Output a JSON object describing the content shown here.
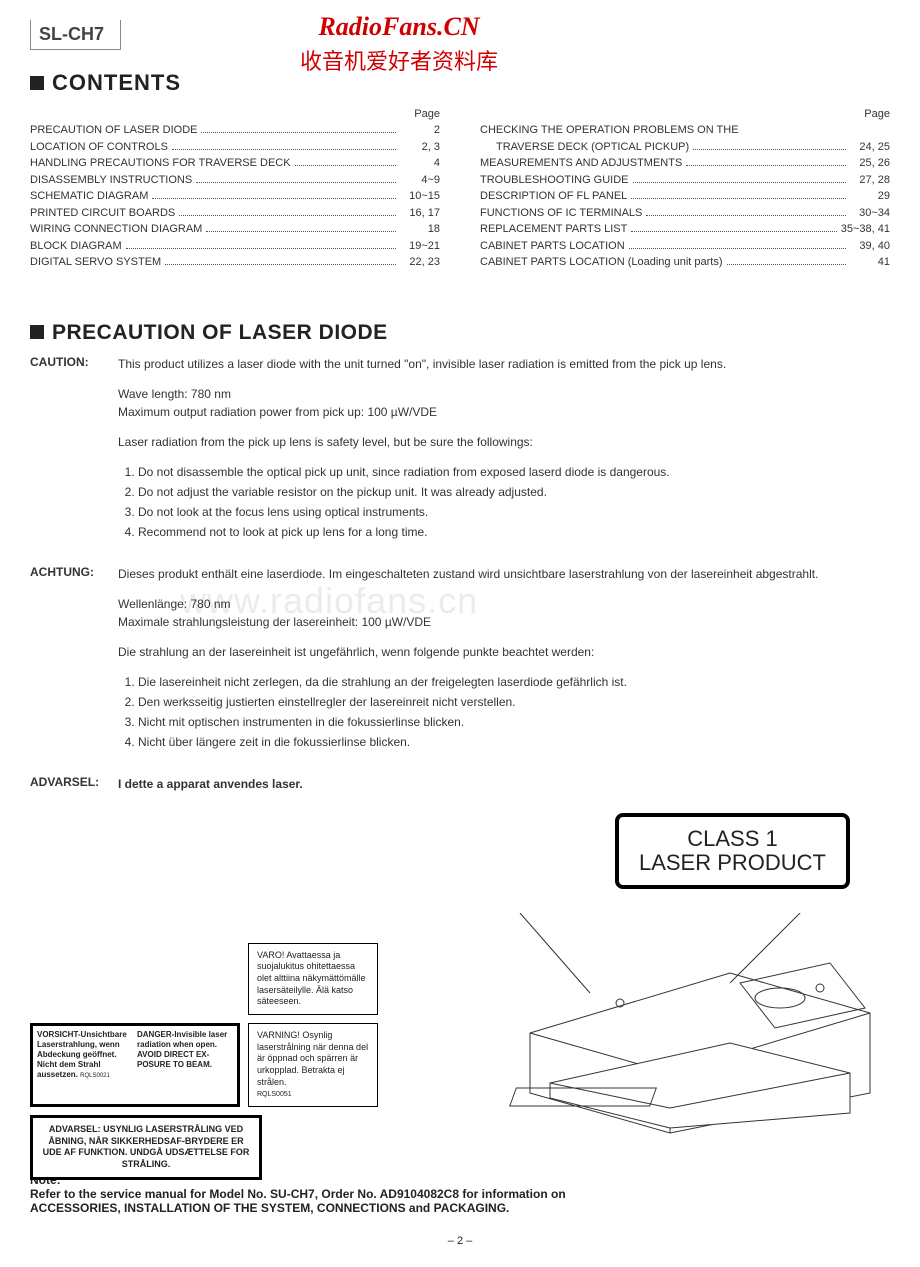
{
  "model": "SL-CH7",
  "watermark": {
    "site_en": "RadioFans.CN",
    "site_cn": "收音机爱好者资料库",
    "mid": "www.radiofans.cn"
  },
  "headers": {
    "contents": "CONTENTS",
    "precaution": "PRECAUTION OF LASER DIODE",
    "page": "Page"
  },
  "toc_left": [
    {
      "label": "PRECAUTION OF LASER DIODE",
      "page": "2"
    },
    {
      "label": "LOCATION OF CONTROLS",
      "page": "2, 3"
    },
    {
      "label": "HANDLING PRECAUTIONS FOR TRAVERSE DECK",
      "page": "4"
    },
    {
      "label": "DISASSEMBLY INSTRUCTIONS",
      "page": "4~9"
    },
    {
      "label": "SCHEMATIC DIAGRAM",
      "page": "10~15"
    },
    {
      "label": "PRINTED CIRCUIT BOARDS",
      "page": "16, 17"
    },
    {
      "label": "WIRING CONNECTION DIAGRAM",
      "page": "18"
    },
    {
      "label": "BLOCK DIAGRAM",
      "page": "19~21"
    },
    {
      "label": "DIGITAL SERVO SYSTEM",
      "page": "22, 23"
    }
  ],
  "toc_right": [
    {
      "label": "CHECKING THE OPERATION PROBLEMS ON THE",
      "page": ""
    },
    {
      "label": "TRAVERSE DECK (OPTICAL PICKUP)",
      "page": "24, 25",
      "indent": true
    },
    {
      "label": "MEASUREMENTS AND ADJUSTMENTS",
      "page": "25, 26"
    },
    {
      "label": "TROUBLESHOOTING GUIDE",
      "page": "27, 28"
    },
    {
      "label": "DESCRIPTION OF FL PANEL",
      "page": "29"
    },
    {
      "label": "FUNCTIONS OF IC TERMINALS",
      "page": "30~34"
    },
    {
      "label": "REPLACEMENT PARTS LIST",
      "page": "35~38, 41"
    },
    {
      "label": "CABINET PARTS LOCATION",
      "page": "39, 40"
    },
    {
      "label": "CABINET PARTS LOCATION (Loading unit parts)",
      "page": "41"
    }
  ],
  "caution": {
    "label": "CAUTION:",
    "intro": "This product utilizes a laser diode with the unit turned \"on\", invisible laser radiation is emitted from the pick up lens.",
    "wavelength": "Wave length: 780 nm",
    "power": "Maximum output radiation power from pick up: 100 µW/VDE",
    "safety": "Laser radiation from the pick up lens is safety level, but be sure the followings:",
    "items": [
      "Do not disassemble the optical pick up unit, since radiation from exposed laserd diode is dangerous.",
      "Do not adjust the variable resistor on the pickup unit. It was already adjusted.",
      "Do not look at the focus lens using optical instruments.",
      "Recommend not to look at pick up lens for a long time."
    ]
  },
  "achtung": {
    "label": "ACHTUNG:",
    "intro": "Dieses produkt enthält eine laserdiode. Im eingeschalteten zustand wird unsichtbare laserstrahlung von der lasereinheit abgestrahlt.",
    "wavelength": "Wellenlänge: 780 nm",
    "power": "Maximale strahlungsleistung der lasereinheit: 100 µW/VDE",
    "safety": "Die strahlung an der lasereinheit ist ungefährlich, wenn folgende punkte beachtet werden:",
    "items": [
      "Die lasereinheit nicht zerlegen, da die strahlung an der freigelegten laserdiode gefährlich ist.",
      "Den werksseitig justierten einstellregler der lasereinreit nicht verstellen.",
      "Nicht mit optischen instrumenten in die fokussierlinse blicken.",
      "Nicht über längere zeit in die fokussierlinse blicken."
    ]
  },
  "advarsel": {
    "label": "ADVARSEL:",
    "text": "I dette a apparat anvendes laser."
  },
  "labels": {
    "class1_line1": "CLASS 1",
    "class1_line2": "LASER PRODUCT",
    "advarsel_box": "ADVARSEL: USYNLIG LASERSTRÅLING VED ÅBNING, NÅR SIKKERHEDSAF-BRYDERE ER UDE AF FUNKTION. UNDGÅ UDSÆTTELSE FOR STRÅLING.",
    "vorsicht": "VORSICHT-Unsichtbare Laserstrahlung, wenn Abdeckung geöffnet. Nicht dem Strahl aussetzen.",
    "vorsicht_code": "RQLS0021",
    "danger": "DANGER-Invisible laser radiation when open. AVOID DIRECT EX-POSURE TO BEAM.",
    "varo": "VARO! Avattaessa ja suojalukitus ohitettaessa olet alttiina näkymättömälle lasersäteilylle. Älä katso säteeseen.",
    "varning": "VARNING! Osynlig laserstrålning när denna del är öppnad och spärren är urkopplad. Betrakta ej strålen.",
    "varning_code": "RQLS0051"
  },
  "note": {
    "label": "Note:",
    "line1": "Refer to the service manual for Model No. SU-CH7, Order No. AD9104082C8 for information on",
    "line2": "ACCESSORIES, INSTALLATION OF THE SYSTEM, CONNECTIONS and PACKAGING."
  },
  "page_number": "– 2 –"
}
